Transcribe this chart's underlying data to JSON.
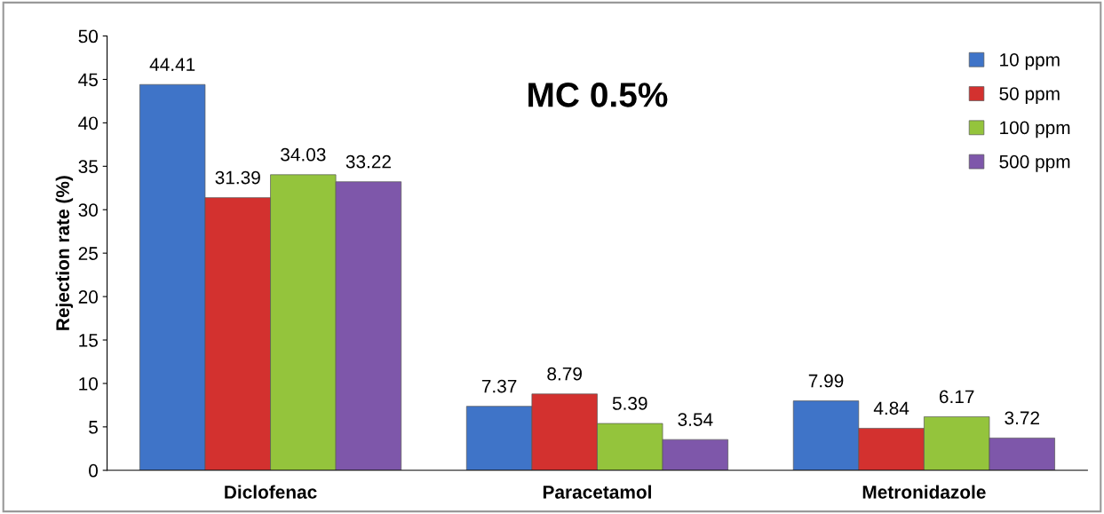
{
  "chart_data": {
    "type": "bar",
    "title": "MC 0.5%",
    "ylabel": "Rejection rate (%)",
    "categories": [
      "Diclofenac",
      "Paracetamol",
      "Metronidazole"
    ],
    "series": [
      {
        "name": "10 ppm",
        "color": "#3f74c8",
        "values": [
          44.41,
          7.37,
          7.99
        ]
      },
      {
        "name": "50 ppm",
        "color": "#d3312f",
        "values": [
          31.39,
          8.79,
          4.84
        ]
      },
      {
        "name": "100 ppm",
        "color": "#94c43c",
        "values": [
          34.03,
          5.39,
          6.17
        ]
      },
      {
        "name": "500 ppm",
        "color": "#7e57aa",
        "values": [
          33.22,
          3.54,
          3.72
        ]
      }
    ],
    "ylim": [
      0,
      50
    ],
    "yticks": [
      0,
      5,
      10,
      15,
      20,
      25,
      30,
      35,
      40,
      45,
      50
    ],
    "data_labels": true,
    "legend": "top right",
    "grid": false
  }
}
